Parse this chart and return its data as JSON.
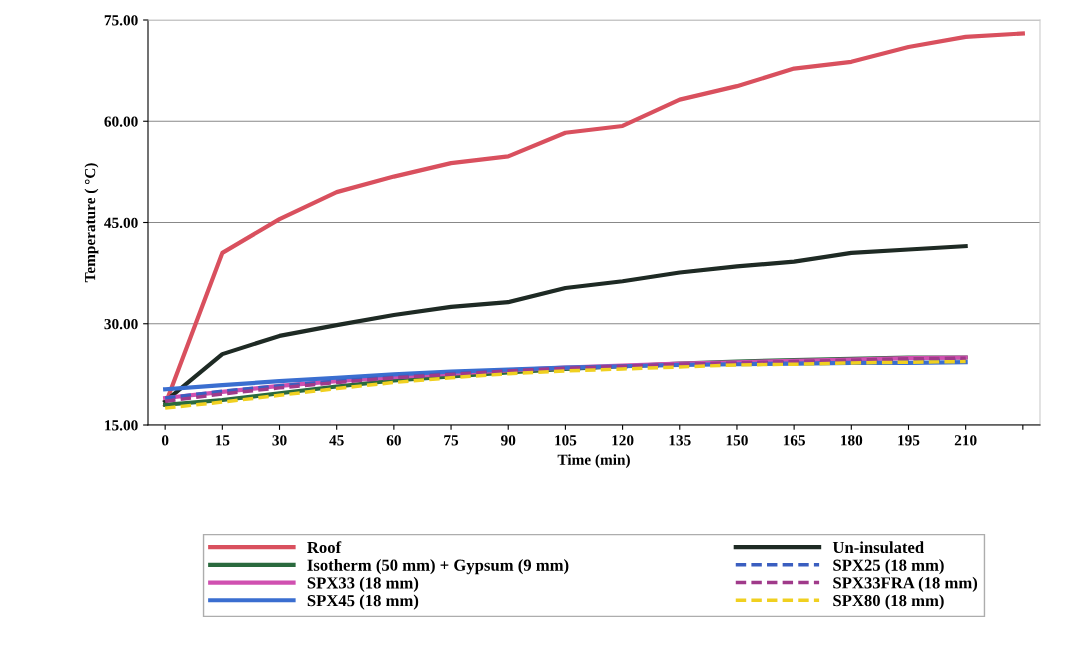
{
  "chart_data": {
    "type": "line",
    "xlabel": "Time (min)",
    "ylabel": "Temperature ( °C)",
    "categories": [
      "0",
      "15",
      "30",
      "45",
      "60",
      "75",
      "90",
      "105",
      "120",
      "135",
      "150",
      "165",
      "180",
      "195",
      "210",
      null
    ],
    "ylim": [
      15,
      75
    ],
    "yticks": [
      {
        "value": 15,
        "label": "15.00"
      },
      {
        "value": 30,
        "label": "30.00"
      },
      {
        "value": 45,
        "label": "45.00"
      },
      {
        "value": 60,
        "label": "60.00"
      },
      {
        "value": 75,
        "label": "75.00"
      }
    ],
    "grid": "y",
    "legend": "bottom",
    "marker": "none",
    "series": [
      {
        "name": "Roof",
        "color": "#d9505e",
        "line_style": "solid",
        "values": [
          18,
          40.5,
          45.5,
          49.5,
          51.8,
          53.8,
          54.8,
          58.3,
          59.3,
          63.2,
          65.2,
          67.8,
          68.8,
          71,
          72.5,
          73
        ]
      },
      {
        "name": "Un-insulated",
        "color": "#1e2a24",
        "line_style": "solid",
        "values": [
          18.5,
          25.5,
          28.2,
          29.8,
          31.3,
          32.5,
          33.2,
          35.3,
          36.3,
          37.6,
          38.5,
          39.2,
          40.5,
          41,
          41.5,
          null
        ]
      },
      {
        "name": "Isotherm (50 mm) + Gypsum (9 mm)",
        "color": "#2a6a3e",
        "line_style": "solid",
        "values": [
          18,
          18.7,
          19.7,
          20.7,
          21.6,
          22.2,
          22.8,
          23.3,
          23.7,
          24.1,
          24.4,
          24.6,
          24.8,
          25,
          25,
          null
        ]
      },
      {
        "name": "SPX25 (18 mm)",
        "color": "#3a5ec0",
        "line_style": "dashed",
        "values": [
          19,
          20,
          20.8,
          21.5,
          22.1,
          22.6,
          23,
          23.3,
          23.6,
          23.9,
          24.1,
          24.3,
          24.4,
          24.5,
          24.6,
          null
        ]
      },
      {
        "name": "SPX33 (18 mm)",
        "color": "#d050b0",
        "line_style": "solid",
        "values": [
          19,
          19.9,
          20.8,
          21.5,
          22.1,
          22.6,
          23.1,
          23.5,
          23.8,
          24.1,
          24.3,
          24.5,
          24.7,
          24.9,
          25,
          null
        ]
      },
      {
        "name": "SPX33FRA (18 mm)",
        "color": "#a03a8a",
        "line_style": "dashed",
        "values": [
          18.5,
          19.6,
          20.5,
          21.3,
          22,
          22.5,
          23,
          23.4,
          23.7,
          24,
          24.2,
          24.4,
          24.6,
          24.8,
          24.9,
          null
        ]
      },
      {
        "name": "SPX45 (18 mm)",
        "color": "#3a6ed0",
        "line_style": "solid",
        "values": [
          20.3,
          20.9,
          21.5,
          22,
          22.5,
          22.9,
          23.2,
          23.5,
          23.7,
          23.9,
          24,
          24.1,
          24.2,
          24.2,
          24.3,
          null
        ]
      },
      {
        "name": "SPX80 (18 mm)",
        "color": "#f0d020",
        "line_style": "dashed",
        "values": [
          17.5,
          18.4,
          19.4,
          20.4,
          21.3,
          22,
          22.6,
          23,
          23.3,
          23.6,
          23.9,
          24,
          24.2,
          24.3,
          24.4,
          null
        ]
      }
    ]
  }
}
